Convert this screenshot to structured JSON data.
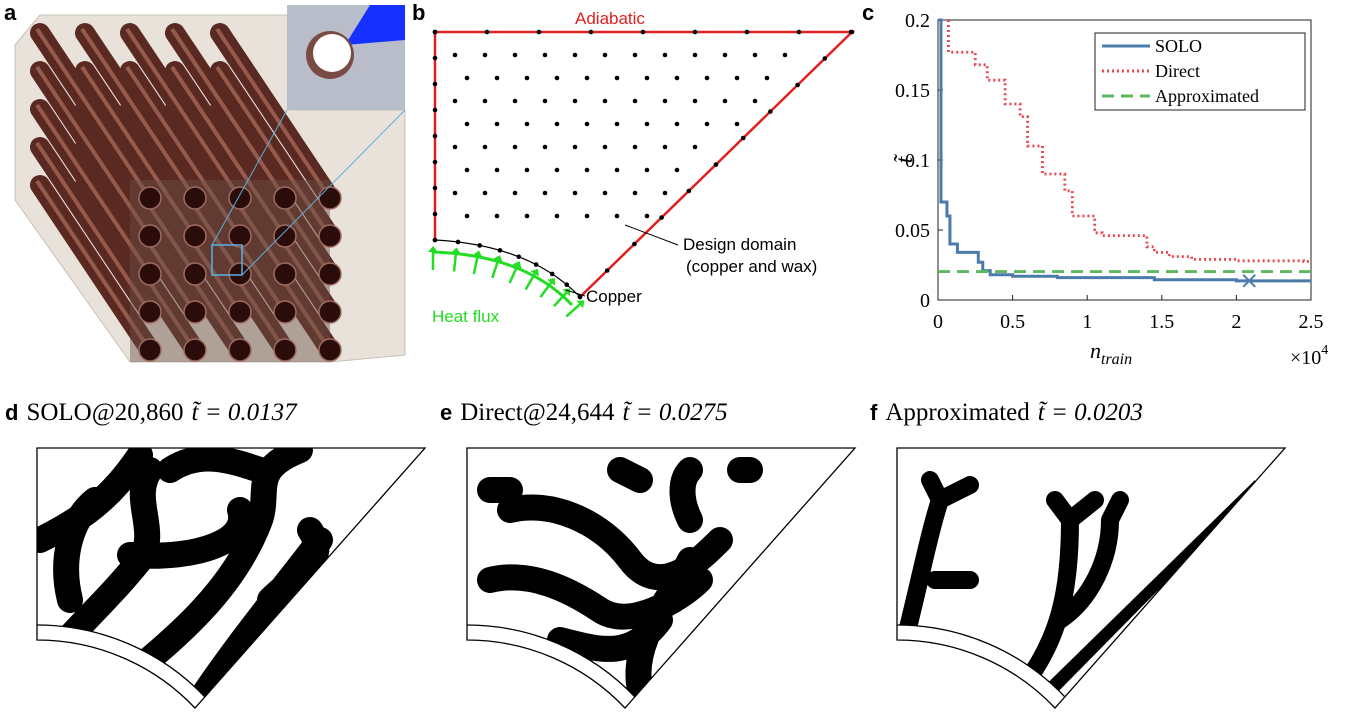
{
  "panels": {
    "a": {
      "label": "a"
    },
    "b": {
      "label": "b",
      "adiabatic": "Adiabatic",
      "design": "Design domain",
      "design_sub": "(copper and wax)",
      "copper": "Copper",
      "heat_flux": "Heat flux"
    },
    "d": {
      "label": "d",
      "title": "SOLO@20,860",
      "metric": "t̃ = 0.0137"
    },
    "e": {
      "label": "e",
      "title": "Direct@24,644",
      "metric": "t̃ = 0.0275"
    },
    "f": {
      "label": "f",
      "title": "Approximated",
      "metric": "t̃ = 0.0203"
    }
  },
  "chart_data": {
    "type": "line",
    "label": "c",
    "ylabel": "t̃",
    "xlabel": "n",
    "xlabel_sub": "train",
    "x_multiplier": "×10",
    "x_multiplier_exp": "4",
    "xlim": [
      0,
      2.5
    ],
    "xticks": [
      0,
      0.5,
      1,
      1.5,
      2,
      2.5
    ],
    "ylim": [
      0,
      0.2
    ],
    "yticks": [
      0,
      0.05,
      0.1,
      0.15,
      0.2
    ],
    "legend": "top-right",
    "series": [
      {
        "name": "SOLO",
        "color": "#4b7bab",
        "style": "solid",
        "x": [
          0,
          0.02,
          0.02,
          0.06,
          0.06,
          0.08,
          0.08,
          0.13,
          0.13,
          0.27,
          0.27,
          0.3,
          0.3,
          0.35,
          0.35,
          0.5,
          0.5,
          0.8,
          0.8,
          1.45,
          1.45,
          2.0,
          2.0,
          2.5
        ],
        "values": [
          0.2,
          0.2,
          0.07,
          0.07,
          0.06,
          0.06,
          0.04,
          0.04,
          0.034,
          0.034,
          0.027,
          0.027,
          0.021,
          0.021,
          0.018,
          0.018,
          0.017,
          0.017,
          0.016,
          0.016,
          0.0145,
          0.0145,
          0.0137,
          0.0137
        ]
      },
      {
        "name": "Direct",
        "color": "#e8474f",
        "style": "dotted",
        "x": [
          0.07,
          0.07,
          0.25,
          0.25,
          0.33,
          0.33,
          0.45,
          0.45,
          0.55,
          0.55,
          0.6,
          0.6,
          0.7,
          0.7,
          0.85,
          0.85,
          0.9,
          0.9,
          1.05,
          1.05,
          1.1,
          1.1,
          1.4,
          1.4,
          1.45,
          1.45,
          1.55,
          1.55,
          1.7,
          1.7,
          2.0,
          2.0,
          2.45,
          2.45,
          2.5
        ],
        "values": [
          0.2,
          0.177,
          0.177,
          0.168,
          0.168,
          0.157,
          0.157,
          0.14,
          0.14,
          0.131,
          0.131,
          0.11,
          0.11,
          0.09,
          0.09,
          0.078,
          0.078,
          0.06,
          0.06,
          0.048,
          0.048,
          0.046,
          0.046,
          0.038,
          0.038,
          0.034,
          0.034,
          0.031,
          0.031,
          0.029,
          0.029,
          0.028,
          0.028,
          0.0275,
          0.0275
        ]
      },
      {
        "name": "Approximated",
        "color": "#5cb85c",
        "style": "dashed",
        "x": [
          0,
          2.5
        ],
        "values": [
          0.0203,
          0.0203
        ]
      }
    ],
    "marker": {
      "x": 2.086,
      "y": 0.0137,
      "color": "#4b7bab"
    }
  }
}
